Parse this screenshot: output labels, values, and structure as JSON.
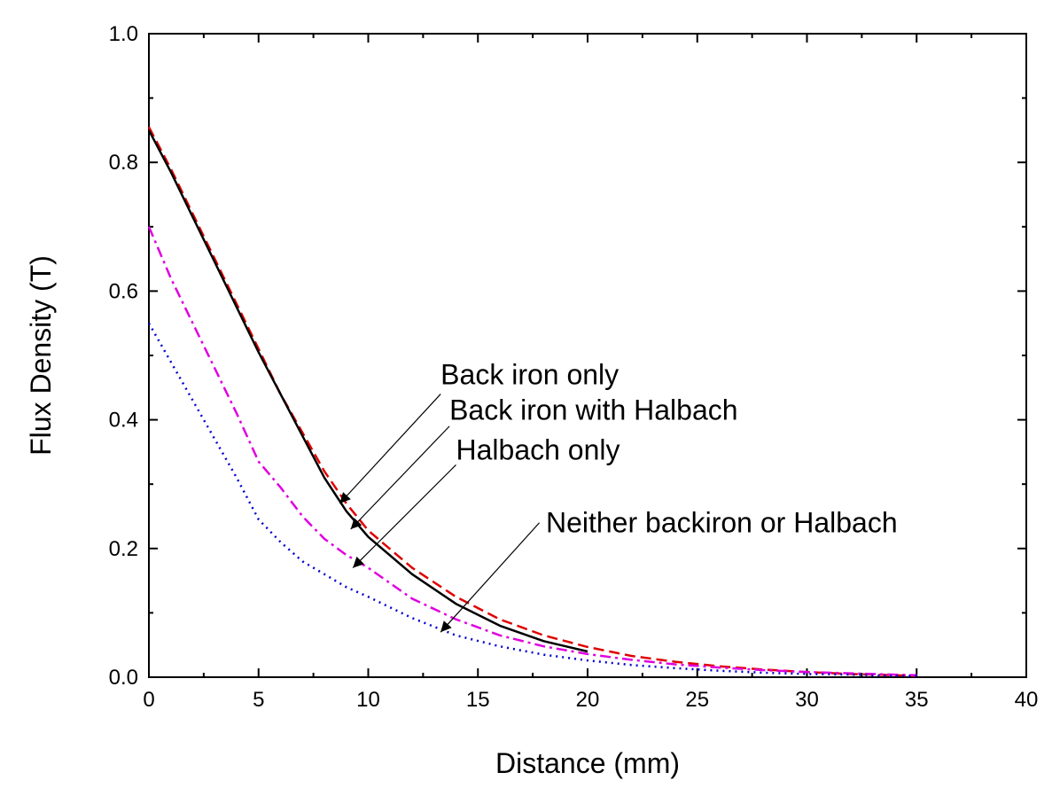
{
  "chart_data": {
    "type": "line",
    "title": "",
    "xlabel": "Distance (mm)",
    "ylabel": "Flux Density (T)",
    "xlim": [
      0,
      40
    ],
    "ylim": [
      0,
      1.0
    ],
    "xticks": [
      "0",
      "5",
      "10",
      "15",
      "20",
      "25",
      "30",
      "35",
      "40"
    ],
    "yticks": [
      "0.0",
      "0.2",
      "0.4",
      "0.6",
      "0.8",
      "1.0"
    ],
    "grid": false,
    "legend": "none",
    "series": [
      {
        "name": "Back iron only",
        "color": "#e00000",
        "dash": "dashed",
        "x": [
          0,
          1,
          2,
          3,
          4,
          5,
          6,
          7,
          8,
          9,
          10,
          12,
          14,
          16,
          18,
          20,
          22,
          24,
          26,
          28,
          30,
          32,
          34,
          35
        ],
        "y": [
          0.855,
          0.79,
          0.72,
          0.65,
          0.58,
          0.51,
          0.44,
          0.38,
          0.32,
          0.27,
          0.228,
          0.17,
          0.125,
          0.09,
          0.065,
          0.047,
          0.033,
          0.024,
          0.017,
          0.012,
          0.008,
          0.005,
          0.003,
          0.002
        ]
      },
      {
        "name": "Back iron with Halbach",
        "color": "#000000",
        "dash": "solid",
        "x": [
          0,
          1,
          2,
          3,
          4,
          5,
          6,
          7,
          8,
          9,
          10,
          12,
          14,
          16,
          18,
          20
        ],
        "y": [
          0.85,
          0.785,
          0.715,
          0.645,
          0.575,
          0.505,
          0.44,
          0.375,
          0.31,
          0.258,
          0.218,
          0.16,
          0.114,
          0.08,
          0.056,
          0.04
        ]
      },
      {
        "name": "Halbach only",
        "color": "#e000e0",
        "dash": "dashdot",
        "x": [
          0,
          1,
          2,
          3,
          4,
          5,
          6,
          7,
          8,
          9,
          10,
          12,
          14,
          16,
          18,
          20,
          22,
          24,
          26,
          28,
          30,
          32,
          34,
          35
        ],
        "y": [
          0.7,
          0.62,
          0.55,
          0.48,
          0.41,
          0.335,
          0.295,
          0.25,
          0.215,
          0.19,
          0.17,
          0.122,
          0.09,
          0.065,
          0.048,
          0.036,
          0.027,
          0.02,
          0.015,
          0.011,
          0.008,
          0.006,
          0.004,
          0.003
        ]
      },
      {
        "name": "Neither backiron or Halbach",
        "color": "#0000d0",
        "dash": "dotted",
        "x": [
          0,
          1,
          2,
          3,
          4,
          5,
          6,
          7,
          8,
          9,
          10,
          12,
          14,
          16,
          18,
          20,
          22,
          24,
          26,
          28,
          30,
          32,
          34,
          35
        ],
        "y": [
          0.55,
          0.49,
          0.43,
          0.37,
          0.31,
          0.245,
          0.21,
          0.18,
          0.16,
          0.14,
          0.125,
          0.092,
          0.065,
          0.048,
          0.035,
          0.026,
          0.019,
          0.014,
          0.01,
          0.007,
          0.005,
          0.004,
          0.002,
          0.002
        ]
      }
    ],
    "annotations": [
      {
        "text": "Back iron only",
        "text_x": 13.3,
        "text_y": 0.455,
        "line_from": [
          13.3,
          0.44
        ],
        "arrow_to": [
          8.7,
          0.27
        ]
      },
      {
        "text": "Back iron with Halbach",
        "text_x": 13.7,
        "text_y": 0.4,
        "line_from": [
          13.7,
          0.39
        ],
        "arrow_to": [
          9.2,
          0.23
        ]
      },
      {
        "text": "Halbach only",
        "text_x": 14.0,
        "text_y": 0.338,
        "line_from": [
          14.0,
          0.33
        ],
        "arrow_to": [
          9.3,
          0.17
        ]
      },
      {
        "text": "Neither backiron or Halbach",
        "text_x": 18.1,
        "text_y": 0.225,
        "line_from": [
          17.8,
          0.24
        ],
        "arrow_to": [
          13.3,
          0.07
        ]
      }
    ]
  }
}
